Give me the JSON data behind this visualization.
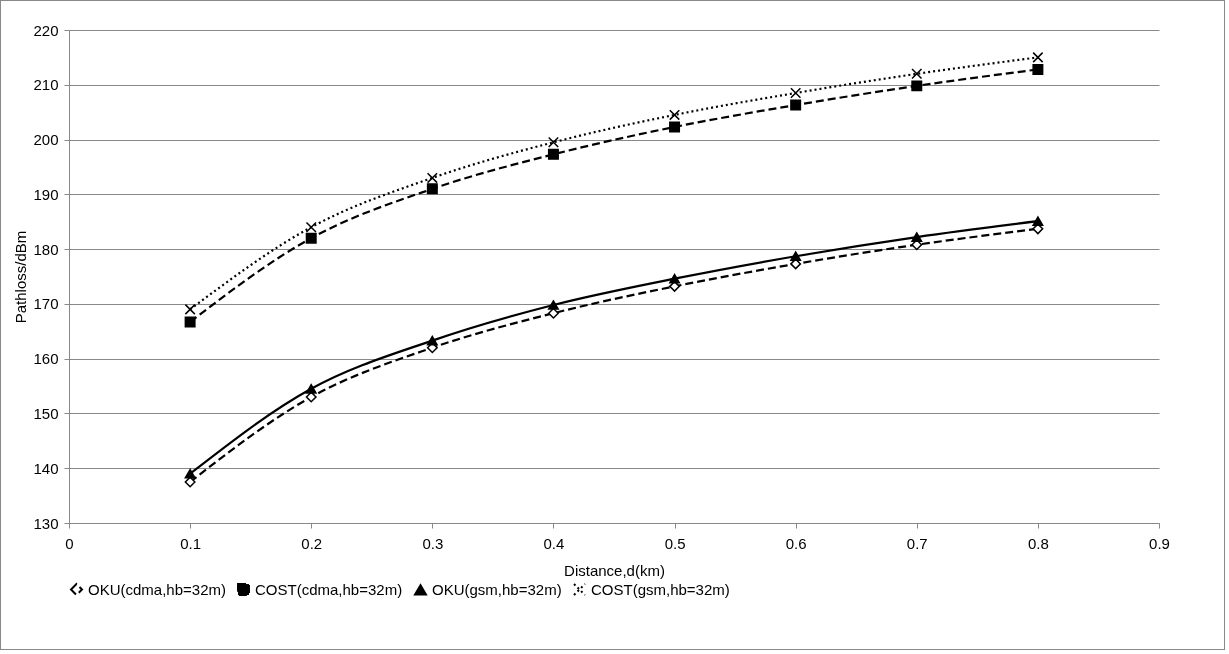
{
  "chart_data": {
    "type": "line",
    "xlabel": "Distance,d(km)",
    "ylabel": "Pathloss/dBm",
    "x": [
      0.1,
      0.2,
      0.3,
      0.4,
      0.5,
      0.6,
      0.7,
      0.8
    ],
    "xlim": [
      0,
      0.9
    ],
    "xticks": [
      0,
      0.1,
      0.2,
      0.3,
      0.4,
      0.5,
      0.6,
      0.7,
      0.8,
      0.9
    ],
    "ylim": [
      130,
      220
    ],
    "yticks": [
      130,
      140,
      150,
      160,
      170,
      180,
      190,
      200,
      210,
      220
    ],
    "grid": "y",
    "legend": "bottom",
    "series": [
      {
        "name": "OKU(cdma,hb=32m)",
        "color": "#000000",
        "marker": "diamond",
        "line_style": "dashed",
        "values": [
          137.5,
          153,
          162,
          168.3,
          173.2,
          177.3,
          180.8,
          183.7
        ]
      },
      {
        "name": "COST(cdma,hb=32m)",
        "color": "#000000",
        "marker": "square",
        "line_style": "dashed",
        "values": [
          166.7,
          182,
          191,
          197.3,
          202.3,
          206.3,
          209.8,
          212.8
        ]
      },
      {
        "name": "OKU(gsm,hb=32m)",
        "color": "#000000",
        "marker": "triangle",
        "line_style": "solid",
        "values": [
          139,
          154.5,
          163.3,
          169.8,
          174.6,
          178.7,
          182.2,
          185.1
        ]
      },
      {
        "name": "COST(gsm,hb=32m)",
        "color": "#000000",
        "marker": "cross",
        "line_style": "dotted",
        "values": [
          169,
          184,
          193,
          199.5,
          204.5,
          208.5,
          212,
          215
        ]
      }
    ]
  }
}
